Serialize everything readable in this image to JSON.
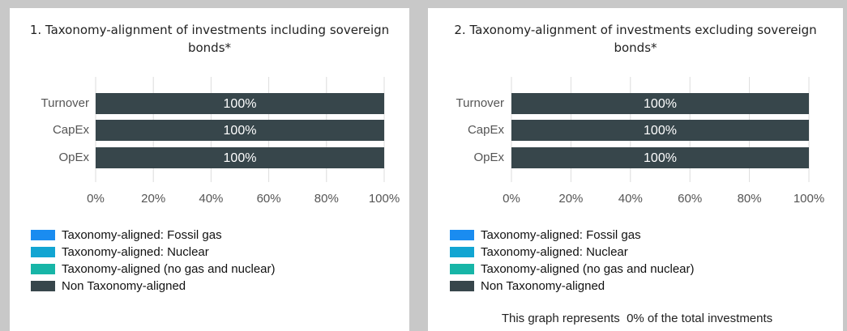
{
  "chart_data": [
    {
      "type": "bar",
      "orientation": "horizontal",
      "stacked": true,
      "title": "1. Taxonomy-alignment of investments including sovereign bonds*",
      "categories": [
        "Turnover",
        "CapEx",
        "OpEx"
      ],
      "series": [
        {
          "name": "Taxonomy-aligned: Fossil gas",
          "color": "#1a8cf0",
          "values": [
            0,
            0,
            0
          ]
        },
        {
          "name": "Taxonomy-aligned: Nuclear",
          "color": "#12a5d2",
          "values": [
            0,
            0,
            0
          ]
        },
        {
          "name": "Taxonomy-aligned (no gas and nuclear)",
          "color": "#17b5a7",
          "values": [
            0,
            0,
            0
          ]
        },
        {
          "name": "Non Taxonomy-aligned",
          "color": "#37464b",
          "values": [
            100,
            100,
            100
          ],
          "value_labels": [
            "100%",
            "100%",
            "100%"
          ]
        }
      ],
      "xlim": [
        0,
        100
      ],
      "xticks": [
        {
          "value": 0,
          "label": "0%"
        },
        {
          "value": 20,
          "label": "20%"
        },
        {
          "value": 40,
          "label": "40%"
        },
        {
          "value": 60,
          "label": "60%"
        },
        {
          "value": 80,
          "label": "80%"
        },
        {
          "value": 100,
          "label": "100%"
        }
      ],
      "grid": true
    },
    {
      "type": "bar",
      "orientation": "horizontal",
      "stacked": true,
      "title": "2. Taxonomy-alignment of investments excluding sovereign bonds*",
      "categories": [
        "Turnover",
        "CapEx",
        "OpEx"
      ],
      "series": [
        {
          "name": "Taxonomy-aligned: Fossil gas",
          "color": "#1a8cf0",
          "values": [
            0,
            0,
            0
          ]
        },
        {
          "name": "Taxonomy-aligned: Nuclear",
          "color": "#12a5d2",
          "values": [
            0,
            0,
            0
          ]
        },
        {
          "name": "Taxonomy-aligned (no gas and nuclear)",
          "color": "#17b5a7",
          "values": [
            0,
            0,
            0
          ]
        },
        {
          "name": "Non Taxonomy-aligned",
          "color": "#37464b",
          "values": [
            100,
            100,
            100
          ],
          "value_labels": [
            "100%",
            "100%",
            "100%"
          ]
        }
      ],
      "xlim": [
        0,
        100
      ],
      "xticks": [
        {
          "value": 0,
          "label": "0%"
        },
        {
          "value": 20,
          "label": "20%"
        },
        {
          "value": 40,
          "label": "40%"
        },
        {
          "value": 60,
          "label": "60%"
        },
        {
          "value": 80,
          "label": "80%"
        },
        {
          "value": 100,
          "label": "100%"
        }
      ],
      "grid": true,
      "note": "This graph represents  0% of the total investments"
    }
  ]
}
